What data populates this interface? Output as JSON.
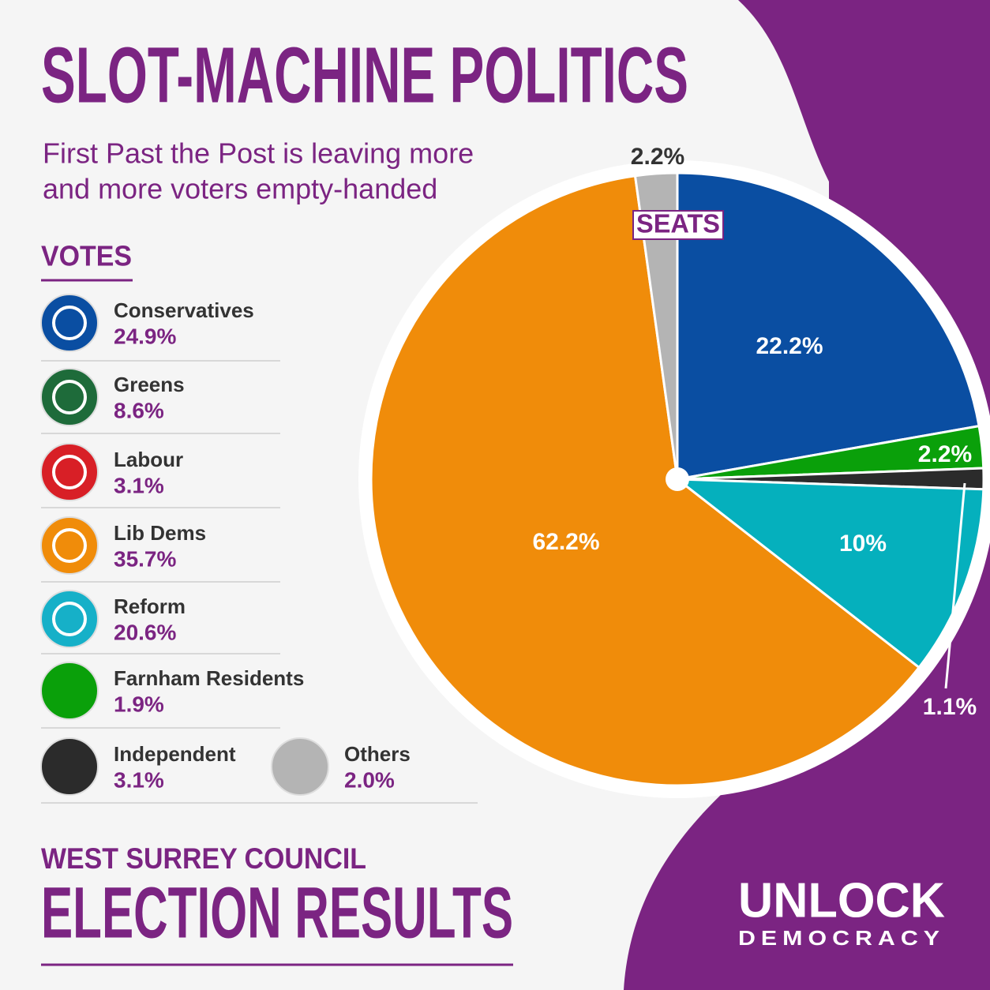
{
  "title": "SLOT-MACHINE POLITICS",
  "subtitle": [
    "First Past the Post is leaving more",
    "and more voters empty-handed"
  ],
  "legend": {
    "title": "VOTES",
    "items": [
      {
        "name": "Conservatives",
        "share": "24.9%"
      },
      {
        "name": "Greens",
        "share": "8.6%"
      },
      {
        "name": "Labour",
        "share": "3.1%"
      },
      {
        "name": "Lib Dems",
        "share": "35.7%"
      },
      {
        "name": "Reform",
        "share": "20.6%"
      },
      {
        "name": "Farnham Residents",
        "share": "1.9%"
      },
      {
        "name": "Independent",
        "share": "3.1%"
      },
      {
        "name": "Others",
        "share": "2.0%"
      }
    ]
  },
  "chart_data": {
    "type": "pie",
    "label": "SEATS",
    "values": [
      22.2,
      2.2,
      1.1,
      10,
      62.2,
      2.2
    ],
    "value_labels": [
      "22.2%",
      "2.2%",
      "1.1%",
      "10%",
      "62.2%",
      "2.2%"
    ],
    "colors": [
      "#0a4ea2",
      "#0aa00a",
      "#2b2b2b",
      "#05b0bd",
      "#f08c0a",
      "#b4b4b4"
    ]
  },
  "footer": {
    "kicker": "WEST SURREY COUNCIL",
    "headline": "ELECTION RESULTS"
  },
  "brand": {
    "name": "UNLOCK",
    "tagline": "DEMOCRACY"
  }
}
